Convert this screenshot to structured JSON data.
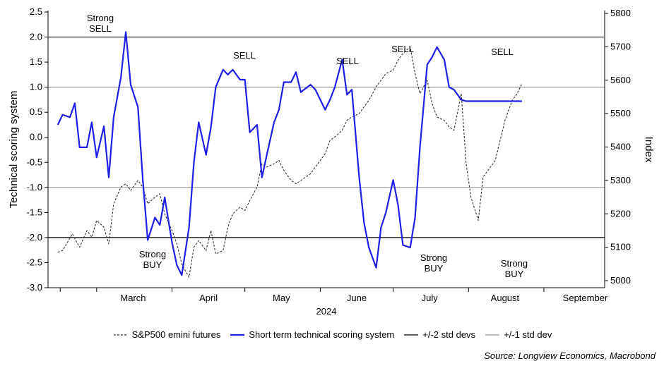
{
  "chart_data": {
    "type": "line",
    "xlabel": "2024",
    "x_tick_labels": [
      "March",
      "April",
      "May",
      "June",
      "July",
      "August",
      "September"
    ],
    "y_left": {
      "label": "Technical scoring system",
      "ticks": [
        "2.5",
        "2.0",
        "1.5",
        "1.0",
        "0.5",
        "0.0",
        "-0.5",
        "-1.0",
        "-1.5",
        "-2.0",
        "-2.5",
        "-3.0"
      ],
      "ylim": [
        -3.0,
        2.5
      ]
    },
    "y_right": {
      "label": "Index",
      "ticks": [
        "5800",
        "5700",
        "5600",
        "5500",
        "5400",
        "5300",
        "5200",
        "5100",
        "5000"
      ],
      "ylim": [
        5000,
        5800
      ]
    },
    "reference_lines": [
      {
        "name": "+/-2 std devs",
        "values": [
          2.0,
          -2.0
        ],
        "color": "#000000"
      },
      {
        "name": "+/-1 std dev",
        "values": [
          1.0,
          -1.0
        ],
        "color": "#999999"
      }
    ],
    "series": [
      {
        "name": "S&P500 emini futures",
        "axis": "right",
        "style": "dashed",
        "color": "#333333",
        "x": [
          "2024-02-14",
          "2024-02-16",
          "2024-02-20",
          "2024-02-23",
          "2024-02-26",
          "2024-02-28",
          "2024-03-01",
          "2024-03-04",
          "2024-03-06",
          "2024-03-08",
          "2024-03-11",
          "2024-03-13",
          "2024-03-15",
          "2024-03-18",
          "2024-03-20",
          "2024-03-22",
          "2024-03-25",
          "2024-03-27",
          "2024-03-29",
          "2024-04-01",
          "2024-04-03",
          "2024-04-05",
          "2024-04-08",
          "2024-04-10",
          "2024-04-12",
          "2024-04-15",
          "2024-04-17",
          "2024-04-19",
          "2024-04-22",
          "2024-04-24",
          "2024-04-26",
          "2024-04-29",
          "2024-05-01",
          "2024-05-03",
          "2024-05-06",
          "2024-05-08",
          "2024-05-10",
          "2024-05-13",
          "2024-05-15",
          "2024-05-17",
          "2024-05-20",
          "2024-05-22",
          "2024-05-24",
          "2024-05-28",
          "2024-05-30",
          "2024-06-03",
          "2024-06-05",
          "2024-06-07",
          "2024-06-10",
          "2024-06-12",
          "2024-06-14",
          "2024-06-17",
          "2024-06-19",
          "2024-06-21",
          "2024-06-24",
          "2024-06-26",
          "2024-06-28",
          "2024-07-01",
          "2024-07-03",
          "2024-07-05",
          "2024-07-08",
          "2024-07-10",
          "2024-07-12",
          "2024-07-15",
          "2024-07-17",
          "2024-07-19",
          "2024-07-22",
          "2024-07-24",
          "2024-07-26",
          "2024-07-29",
          "2024-07-31",
          "2024-08-02",
          "2024-08-05",
          "2024-08-07",
          "2024-08-09",
          "2024-08-12",
          "2024-08-14",
          "2024-08-16",
          "2024-08-19",
          "2024-08-21",
          "2024-08-23"
        ],
        "values": [
          5085,
          5090,
          5140,
          5100,
          5150,
          5130,
          5180,
          5160,
          5110,
          5230,
          5280,
          5290,
          5270,
          5300,
          5280,
          5230,
          5250,
          5260,
          5200,
          5150,
          5110,
          5050,
          5010,
          5100,
          5120,
          5090,
          5150,
          5080,
          5090,
          5160,
          5200,
          5220,
          5210,
          5240,
          5280,
          5350,
          5340,
          5350,
          5360,
          5330,
          5300,
          5290,
          5300,
          5320,
          5340,
          5380,
          5420,
          5430,
          5450,
          5480,
          5490,
          5500,
          5520,
          5540,
          5580,
          5600,
          5620,
          5630,
          5660,
          5680,
          5700,
          5620,
          5560,
          5600,
          5530,
          5490,
          5480,
          5460,
          5450,
          5560,
          5350,
          5250,
          5180,
          5310,
          5330,
          5360,
          5420,
          5480,
          5540,
          5560,
          5590
        ]
      },
      {
        "name": "Short term technical scoring system",
        "axis": "left",
        "style": "solid",
        "color": "#1f1fe6",
        "x": [
          "2024-02-14",
          "2024-02-16",
          "2024-02-19",
          "2024-02-21",
          "2024-02-23",
          "2024-02-26",
          "2024-02-28",
          "2024-03-01",
          "2024-03-04",
          "2024-03-06",
          "2024-03-08",
          "2024-03-11",
          "2024-03-13",
          "2024-03-15",
          "2024-03-18",
          "2024-03-20",
          "2024-03-22",
          "2024-03-25",
          "2024-03-27",
          "2024-03-29",
          "2024-04-01",
          "2024-04-03",
          "2024-04-05",
          "2024-04-08",
          "2024-04-10",
          "2024-04-12",
          "2024-04-15",
          "2024-04-17",
          "2024-04-19",
          "2024-04-22",
          "2024-04-24",
          "2024-04-26",
          "2024-04-29",
          "2024-05-01",
          "2024-05-03",
          "2024-05-06",
          "2024-05-08",
          "2024-05-10",
          "2024-05-13",
          "2024-05-15",
          "2024-05-17",
          "2024-05-20",
          "2024-05-22",
          "2024-05-24",
          "2024-05-28",
          "2024-05-30",
          "2024-06-03",
          "2024-06-05",
          "2024-06-07",
          "2024-06-10",
          "2024-06-12",
          "2024-06-14",
          "2024-06-17",
          "2024-06-19",
          "2024-06-21",
          "2024-06-24",
          "2024-06-26",
          "2024-06-28",
          "2024-07-01",
          "2024-07-03",
          "2024-07-05",
          "2024-07-08",
          "2024-07-10",
          "2024-07-12",
          "2024-07-15",
          "2024-07-17",
          "2024-07-19",
          "2024-07-22",
          "2024-07-24",
          "2024-07-26",
          "2024-07-29",
          "2024-07-31",
          "2024-08-02",
          "2024-08-05",
          "2024-08-07",
          "2024-08-09",
          "2024-08-12",
          "2024-08-14",
          "2024-08-16",
          "2024-08-19",
          "2024-08-21",
          "2024-08-23"
        ],
        "values": [
          0.25,
          0.45,
          0.4,
          0.68,
          -0.2,
          -0.2,
          0.3,
          -0.4,
          0.22,
          -0.8,
          0.4,
          1.2,
          2.1,
          1.05,
          0.6,
          -0.85,
          -2.05,
          -1.6,
          -1.75,
          -1.2,
          -2.1,
          -2.55,
          -2.75,
          -1.8,
          -0.5,
          0.3,
          -0.35,
          0.2,
          1.0,
          1.35,
          1.25,
          1.35,
          1.15,
          1.15,
          0.1,
          0.25,
          -0.8,
          -0.35,
          0.3,
          0.55,
          1.1,
          1.1,
          1.3,
          0.9,
          1.05,
          0.95,
          0.55,
          0.75,
          1.0,
          1.55,
          0.85,
          0.95,
          -0.8,
          -1.7,
          -2.2,
          -2.6,
          -1.8,
          -1.5,
          -0.85,
          -1.35,
          -2.15,
          -2.2,
          -1.6,
          -0.2,
          1.45,
          1.6,
          1.8,
          1.55,
          1.0,
          0.95,
          0.75,
          0.72,
          0.72,
          0.72,
          0.72,
          0.72,
          0.72,
          0.72,
          0.72,
          0.72,
          0.72,
          0.72
        ]
      }
    ],
    "annotations": [
      {
        "text": "Strong\nSELL"
      },
      {
        "text": "SELL"
      },
      {
        "text": "SELL"
      },
      {
        "text": "SELL"
      },
      {
        "text": "SELL"
      },
      {
        "text": "Strong\nBUY"
      },
      {
        "text": "Strong\nBUY"
      },
      {
        "text": "Strong\nBUY"
      }
    ],
    "legend_entries": [
      {
        "label": "S&P500 emini futures",
        "style": "dashed",
        "color": "#333333"
      },
      {
        "label": "Short term technical scoring system",
        "style": "solid",
        "color": "#1f1fe6"
      },
      {
        "label": "+/-2 std devs",
        "style": "solid",
        "color": "#000000"
      },
      {
        "label": "+/-1 std dev",
        "style": "solid",
        "color": "#999999"
      }
    ],
    "legend_position": "bottom"
  },
  "source": "Source: Longview Economics, Macrobond"
}
